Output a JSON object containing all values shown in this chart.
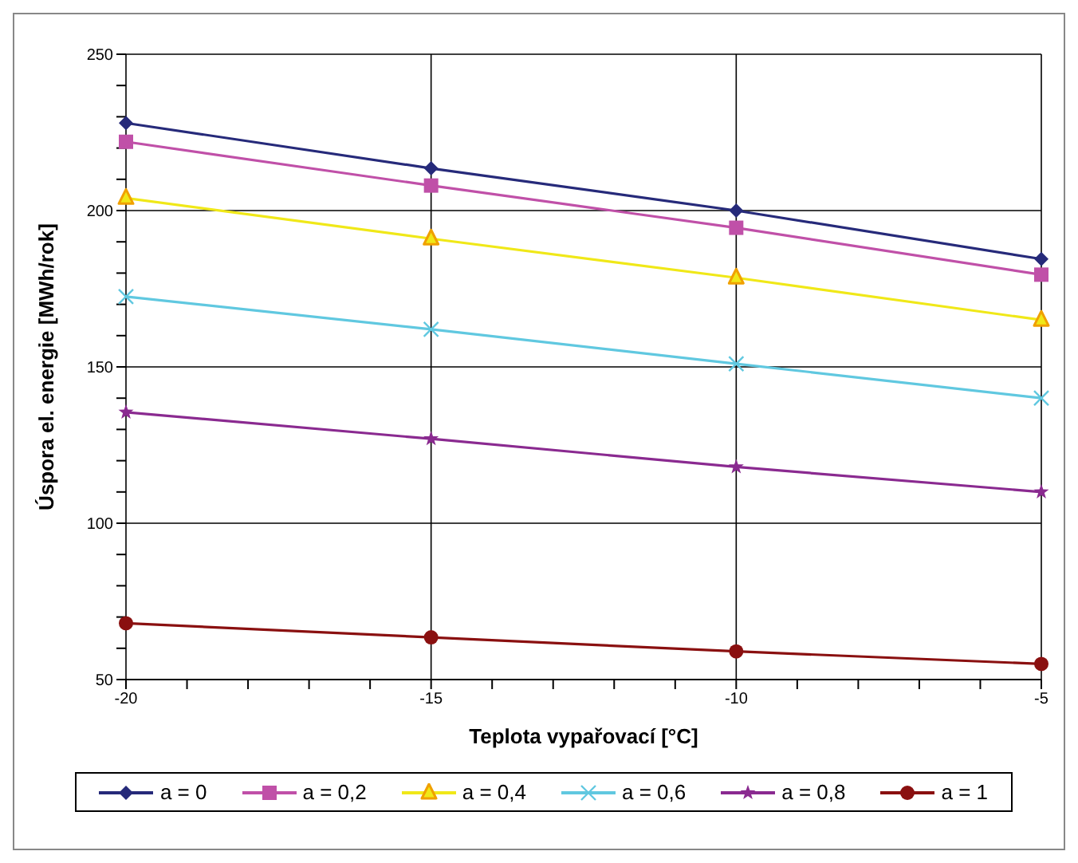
{
  "chart_data": {
    "type": "line",
    "xlabel": "Teplota vypařovací  [°C]",
    "ylabel": "Úspora el. energie  [MWh/rok]",
    "x": [
      -20,
      -15,
      -10,
      -5
    ],
    "xlim": [
      -20,
      -5
    ],
    "xticks": [
      -20,
      {
        "value": -19,
        "label": null
      },
      {
        "value": -18,
        "label": null
      },
      {
        "value": -17,
        "label": null
      },
      {
        "value": -16,
        "label": null
      },
      -15,
      {
        "value": -14,
        "label": null
      },
      {
        "value": -13,
        "label": null
      },
      {
        "value": -12,
        "label": null
      },
      {
        "value": -11,
        "label": null
      },
      -10,
      {
        "value": -9,
        "label": null
      },
      {
        "value": -8,
        "label": null
      },
      {
        "value": -7,
        "label": null
      },
      {
        "value": -6,
        "label": null
      },
      -5
    ],
    "ylim": [
      50,
      250
    ],
    "yticks": [
      50,
      {
        "value": 60,
        "label": null
      },
      {
        "value": 70,
        "label": null
      },
      {
        "value": 80,
        "label": null
      },
      {
        "value": 90,
        "label": null
      },
      100,
      {
        "value": 110,
        "label": null
      },
      {
        "value": 120,
        "label": null
      },
      {
        "value": 130,
        "label": null
      },
      {
        "value": 140,
        "label": null
      },
      150,
      {
        "value": 160,
        "label": null
      },
      {
        "value": 170,
        "label": null
      },
      {
        "value": 180,
        "label": null
      },
      {
        "value": 190,
        "label": null
      },
      200,
      {
        "value": 210,
        "label": null
      },
      {
        "value": 220,
        "label": null
      },
      {
        "value": 230,
        "label": null
      },
      {
        "value": 240,
        "label": null
      },
      250
    ],
    "grid": true,
    "legend": "bottom",
    "line_style": "solid",
    "series": [
      {
        "name": "a = 0",
        "color": "#262a7a",
        "marker": "diamond",
        "values": [
          228,
          213.5,
          200,
          184.5
        ]
      },
      {
        "name": "a = 0,2",
        "color": "#c050a8",
        "marker": "square",
        "values": [
          222,
          208,
          194.5,
          179.5
        ]
      },
      {
        "name": "a = 0,4",
        "color": "#f0e818",
        "marker": "triangle",
        "values": [
          204,
          191,
          178.5,
          165
        ]
      },
      {
        "name": "a = 0,6",
        "color": "#60c8e0",
        "marker": "cross",
        "values": [
          172.5,
          162,
          151,
          140
        ]
      },
      {
        "name": "a = 0,8",
        "color": "#8a2a90",
        "marker": "star",
        "values": [
          135.5,
          127,
          118,
          110
        ]
      },
      {
        "name": "a = 1",
        "color": "#8a1010",
        "marker": "circle",
        "values": [
          68,
          63.5,
          59,
          55
        ]
      }
    ]
  }
}
